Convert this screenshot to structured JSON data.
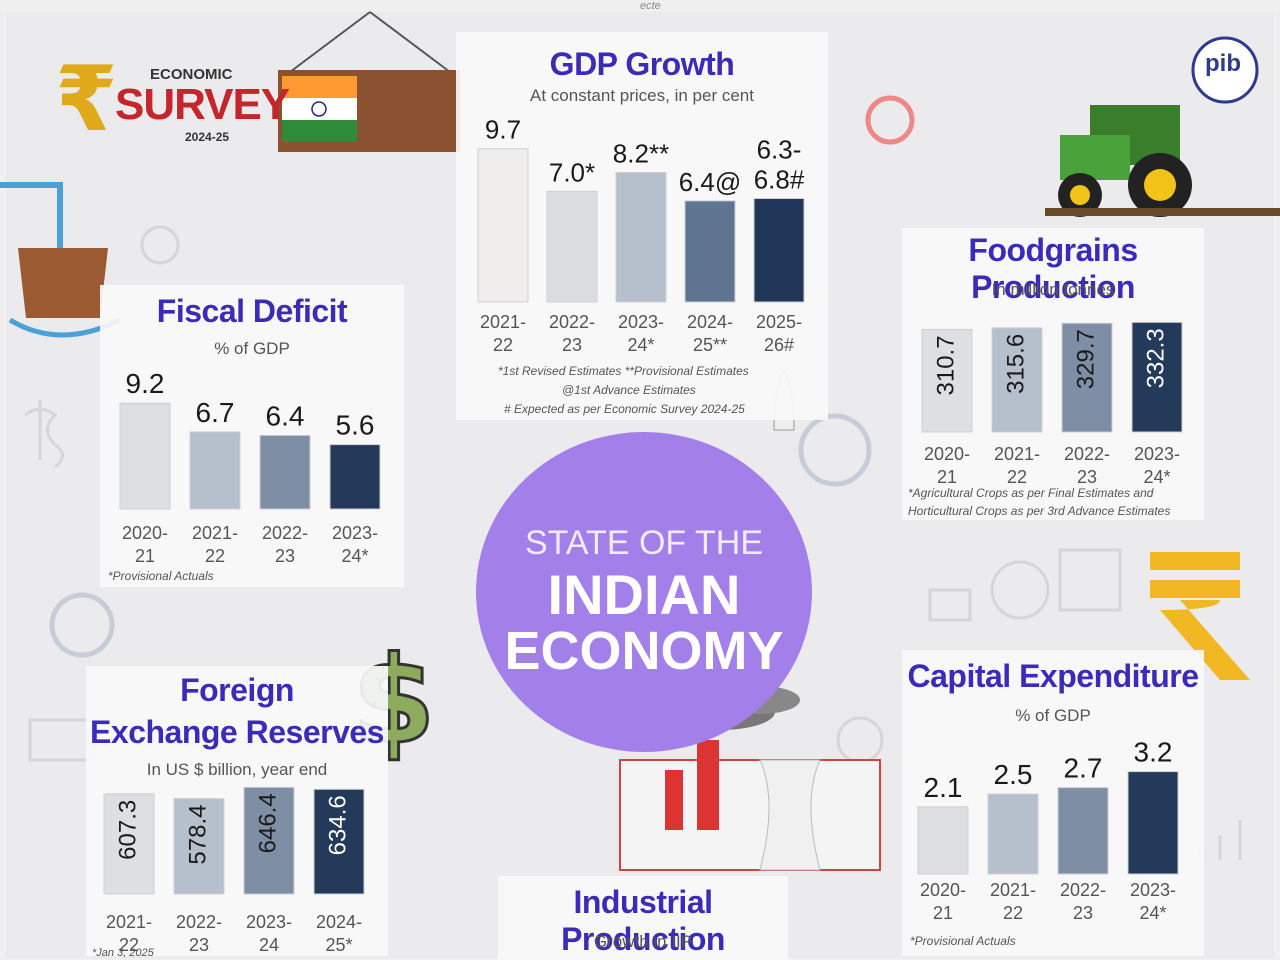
{
  "header_mark": "ecte",
  "logo": {
    "line1": "ECONOMIC",
    "line2": "SURVEY",
    "line3": "2024-25",
    "publisher": "pib"
  },
  "center": {
    "line1": "STATE OF THE",
    "line2": "INDIAN",
    "line3": "ECONOMY"
  },
  "colors": {
    "title": "#3a2bb8",
    "bar_shades": [
      "#e6e6e6",
      "#b6bfcc",
      "#7d8ea5",
      "#243a5a"
    ],
    "center_circle": "#a27fe9"
  },
  "panels": {
    "gdp": {
      "title": "GDP Growth",
      "subtitle": "At constant prices, in per cent",
      "notes": [
        "*1st Revised Estimates **Provisional Estimates",
        "@1st Advance Estimates",
        "# Expected as per Economic Survey 2024-25"
      ]
    },
    "fiscal": {
      "title": "Fiscal Deficit",
      "subtitle": "% of GDP",
      "notes": [
        "*Provisional Actuals"
      ]
    },
    "food": {
      "title": "Foodgrains Production",
      "subtitle": "In million tonnes",
      "notes": [
        "*Agricultural Crops as per Final Estimates and",
        "Horticultural Crops as per 3rd Advance Estimates"
      ]
    },
    "forex": {
      "title_line1": "Foreign",
      "title_line2": "Exchange Reserves",
      "subtitle": "In US $ billion, year end",
      "notes": [
        "*Jan 3, 2025"
      ]
    },
    "capex": {
      "title": "Capital Expenditure",
      "subtitle": "% of GDP",
      "notes": [
        "*Provisional Actuals"
      ]
    },
    "iip": {
      "title": "Industrial Production",
      "subtitle": "Growth in IIP"
    }
  },
  "chart_data": [
    {
      "id": "gdp",
      "type": "bar",
      "title": "GDP Growth",
      "subtitle": "At constant prices, in per cent",
      "categories": [
        [
          "2021-",
          "22"
        ],
        [
          "2022-",
          "23"
        ],
        [
          "2023-",
          "24*"
        ],
        [
          "2024-",
          "25**"
        ],
        [
          "2025-",
          "26#"
        ]
      ],
      "values": [
        9.7,
        7.0,
        8.2,
        6.4,
        6.55
      ],
      "labels": [
        "9.7",
        "7.0*",
        "8.2**",
        "6.4@",
        "6.3-\n6.8#"
      ],
      "range_last": [
        6.3,
        6.8
      ]
    },
    {
      "id": "fiscal",
      "type": "bar",
      "title": "Fiscal Deficit",
      "subtitle": "% of GDP",
      "categories": [
        [
          "2020-",
          "21"
        ],
        [
          "2021-",
          "22"
        ],
        [
          "2022-",
          "23"
        ],
        [
          "2023-",
          "24*"
        ]
      ],
      "values": [
        9.2,
        6.7,
        6.4,
        5.6
      ],
      "labels": [
        "9.2",
        "6.7",
        "6.4",
        "5.6"
      ]
    },
    {
      "id": "food",
      "type": "bar",
      "title": "Foodgrains Production",
      "subtitle": "In million tonnes",
      "categories": [
        [
          "2020-",
          "21"
        ],
        [
          "2021-",
          "22"
        ],
        [
          "2022-",
          "23"
        ],
        [
          "2023-",
          "24*"
        ]
      ],
      "values": [
        310.7,
        315.6,
        329.7,
        332.3
      ],
      "labels": [
        "310.7",
        "315.6",
        "329.7",
        "332.3"
      ]
    },
    {
      "id": "forex",
      "type": "bar",
      "title": "Foreign Exchange Reserves",
      "subtitle": "In US $ billion, year end",
      "categories": [
        [
          "2021-",
          "22"
        ],
        [
          "2022-",
          "23"
        ],
        [
          "2023-",
          "24"
        ],
        [
          "2024-",
          "25*"
        ]
      ],
      "values": [
        607.3,
        578.4,
        646.4,
        634.6
      ],
      "labels": [
        "607.3",
        "578.4",
        "646.4",
        "634.6"
      ]
    },
    {
      "id": "capex",
      "type": "bar",
      "title": "Capital Expenditure",
      "subtitle": "% of GDP",
      "categories": [
        [
          "2020-",
          "21"
        ],
        [
          "2021-",
          "22"
        ],
        [
          "2022-",
          "23"
        ],
        [
          "2023-",
          "24*"
        ]
      ],
      "values": [
        2.1,
        2.5,
        2.7,
        3.2
      ],
      "labels": [
        "2.1",
        "2.5",
        "2.7",
        "3.2"
      ]
    }
  ]
}
